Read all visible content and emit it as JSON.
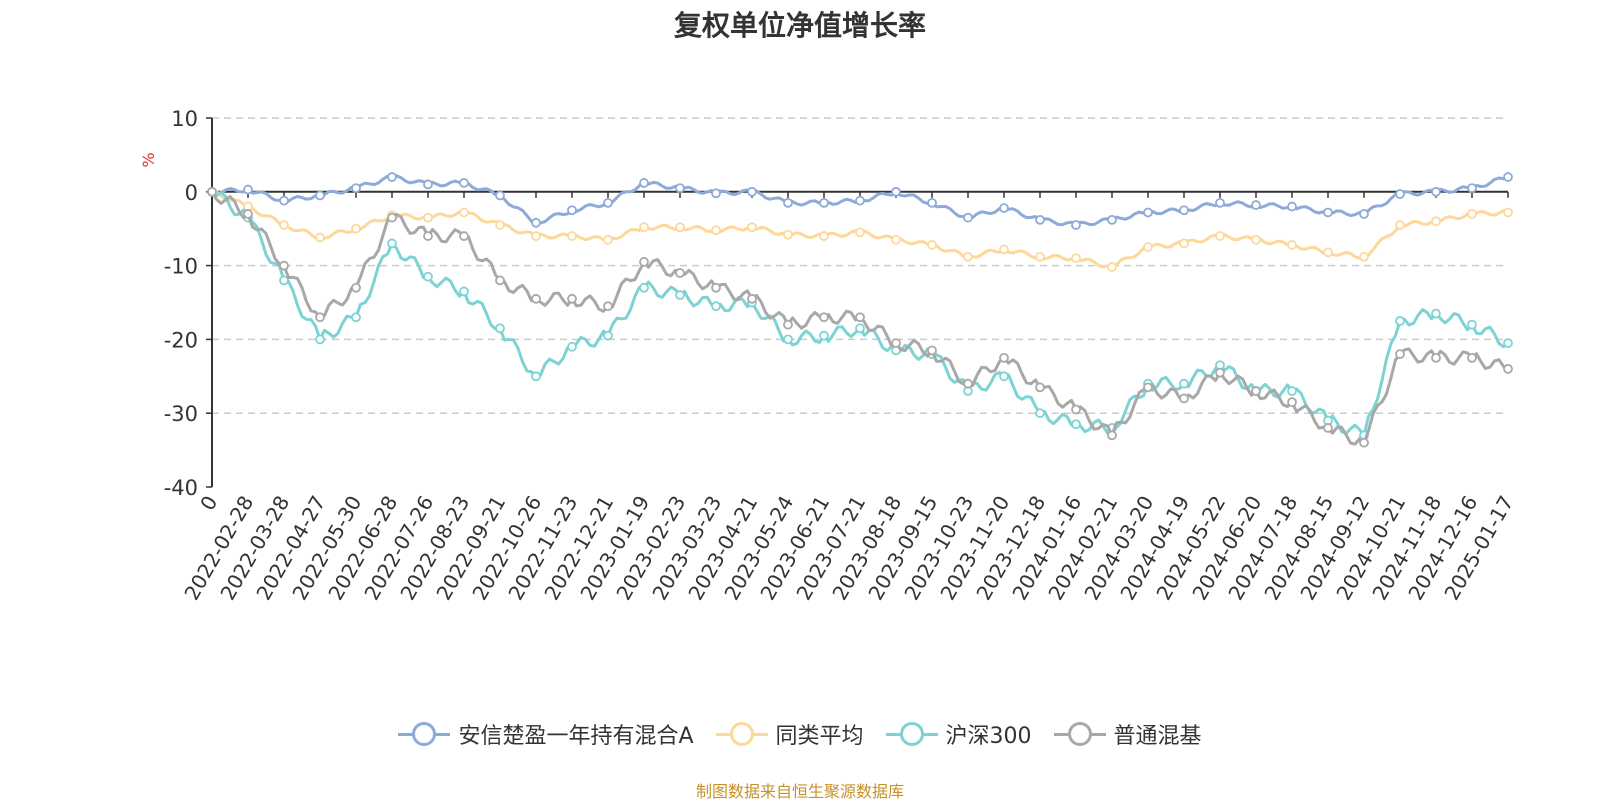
{
  "title": "复权单位净值增长率",
  "source_note": "制图数据来自恒生聚源数据库",
  "chart_data": {
    "type": "line",
    "ylabel": "%",
    "ylim": [
      -40,
      10
    ],
    "yticks": [
      10,
      0,
      -10,
      -20,
      -30,
      -40
    ],
    "grid": true,
    "legend_position": "bottom",
    "x_tick_labels": [
      "0",
      "2022-02-28",
      "2022-03-28",
      "2022-04-27",
      "2022-05-30",
      "2022-06-28",
      "2022-07-26",
      "2022-08-23",
      "2022-09-21",
      "2022-10-26",
      "2022-11-23",
      "2022-12-21",
      "2023-01-19",
      "2023-02-23",
      "2023-03-23",
      "2023-04-21",
      "2023-05-24",
      "2023-06-21",
      "2023-07-21",
      "2023-08-18",
      "2023-09-15",
      "2023-10-23",
      "2023-11-20",
      "2023-12-18",
      "2024-01-16",
      "2024-02-21",
      "2024-03-20",
      "2024-04-19",
      "2024-05-22",
      "2024-06-20",
      "2024-07-18",
      "2024-08-15",
      "2024-09-12",
      "2024-10-21",
      "2024-11-18",
      "2024-12-16",
      "2025-01-17"
    ],
    "x": [
      "0",
      "2022-02-28",
      "2022-03-28",
      "2022-04-27",
      "2022-05-30",
      "2022-06-28",
      "2022-07-26",
      "2022-08-23",
      "2022-09-21",
      "2022-10-26",
      "2022-11-23",
      "2022-12-21",
      "2023-01-19",
      "2023-02-23",
      "2023-03-23",
      "2023-04-21",
      "2023-05-24",
      "2023-06-21",
      "2023-07-21",
      "2023-08-18",
      "2023-09-15",
      "2023-10-23",
      "2023-11-20",
      "2023-12-18",
      "2024-01-16",
      "2024-02-21",
      "2024-03-20",
      "2024-04-19",
      "2024-05-22",
      "2024-06-20",
      "2024-07-18",
      "2024-08-15",
      "2024-09-12",
      "2024-10-21",
      "2024-11-18",
      "2024-12-16",
      "2025-01-17"
    ],
    "series": [
      {
        "name": "安信楚盈一年持有混合A",
        "color": "#8eaad8",
        "values": [
          0,
          0.3,
          -1.2,
          -0.5,
          0.5,
          2.0,
          1.0,
          1.2,
          -0.5,
          -4.2,
          -2.5,
          -1.5,
          1.2,
          0.5,
          -0.2,
          0,
          -1.5,
          -1.5,
          -1.2,
          0,
          -1.5,
          -3.5,
          -2.2,
          -3.8,
          -4.5,
          -3.8,
          -2.8,
          -2.5,
          -1.5,
          -1.8,
          -2.0,
          -2.8,
          -3.0,
          -0.3,
          0,
          0.5,
          2.0
        ]
      },
      {
        "name": "同类平均",
        "color": "#fdd89a",
        "values": [
          0,
          -2.0,
          -4.5,
          -6.2,
          -5.0,
          -3.2,
          -3.5,
          -2.8,
          -4.5,
          -6.0,
          -6.0,
          -6.5,
          -4.8,
          -4.8,
          -5.2,
          -4.8,
          -5.8,
          -6.0,
          -5.5,
          -6.5,
          -7.2,
          -8.8,
          -7.8,
          -8.8,
          -9.0,
          -10.2,
          -7.5,
          -7.0,
          -6.0,
          -6.5,
          -7.2,
          -8.2,
          -8.8,
          -4.5,
          -4.0,
          -3.0,
          -2.8
        ]
      },
      {
        "name": "沪深300",
        "color": "#7dd3d3",
        "values": [
          0,
          -3.5,
          -12.0,
          -20.0,
          -17.0,
          -7.0,
          -11.5,
          -13.5,
          -18.5,
          -25.0,
          -21.0,
          -19.5,
          -13.0,
          -14.0,
          -15.5,
          -15.0,
          -20.0,
          -19.5,
          -18.5,
          -21.5,
          -22.0,
          -27.0,
          -25.0,
          -30.0,
          -31.5,
          -32.0,
          -26.0,
          -26.0,
          -23.5,
          -27.0,
          -27.0,
          -31.0,
          -33.0,
          -17.5,
          -16.5,
          -18.0,
          -20.5
        ]
      },
      {
        "name": "普通混基",
        "color": "#a8a8a8",
        "values": [
          0,
          -3.0,
          -10.0,
          -17.0,
          -13.0,
          -3.5,
          -6.0,
          -6.0,
          -12.0,
          -14.5,
          -14.5,
          -15.5,
          -9.5,
          -11.0,
          -13.0,
          -14.5,
          -18.0,
          -17.0,
          -17.0,
          -20.5,
          -21.5,
          -26.0,
          -22.5,
          -26.5,
          -29.5,
          -33.0,
          -26.5,
          -28.0,
          -24.5,
          -27.0,
          -28.5,
          -32.0,
          -34.0,
          -22.0,
          -22.5,
          -22.5,
          -24.0
        ]
      }
    ]
  }
}
